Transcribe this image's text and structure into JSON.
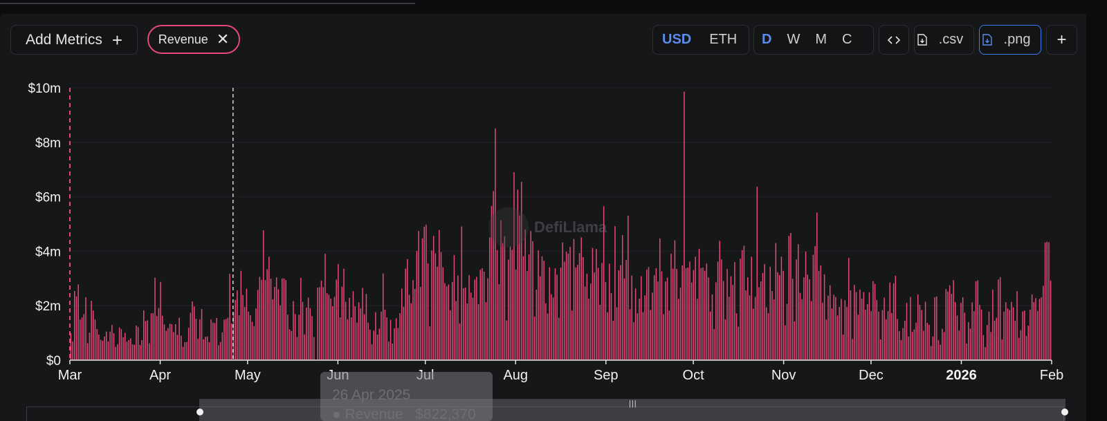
{
  "toolbar": {
    "add_metrics_label": "Add Metrics",
    "add_icon": "plus-icon",
    "metric_chip_label": "Revenue",
    "currency_options": [
      "USD",
      "ETH"
    ],
    "currency_selected": "USD",
    "period_options": [
      "D",
      "W",
      "M",
      "C"
    ],
    "period_selected": "D",
    "embed_icon": "code-icon",
    "csv_label": ".csv",
    "png_label": ".png",
    "download_icon": "file-download-icon",
    "more_label": "+"
  },
  "watermark": {
    "text": "DefiLlama"
  },
  "tooltip": {
    "date": "26 Apr 2025",
    "series": "Revenue",
    "value": "$822,370"
  },
  "colors": {
    "bar": "#e8497a",
    "accent": "#5b8def",
    "background": "#161719"
  },
  "chart_data": {
    "type": "bar",
    "series": [
      {
        "name": "Revenue",
        "values": [
          0.99,
          0.69,
          2.54,
          2.34,
          2.78,
          1.49,
          1.57,
          1.69,
          2.31,
          0.62,
          1.01,
          2.18,
          1.82,
          1.49,
          1.14,
          0.94,
          0.75,
          0.71,
          0.87,
          1.05,
          0.69,
          1.05,
          1.29,
          0.99,
          0.49,
          0.59,
          1.2,
          1.14,
          0.84,
          1.0,
          0.68,
          0.74,
          0.8,
          0.58,
          0.57,
          1.27,
          1.22,
          0.56,
          0.74,
          1.83,
          1.43,
          1.46,
          0.62,
          1.72,
          1.73,
          3.03,
          1.62,
          1.91,
          2.87,
          1.63,
          1.31,
          1.08,
          1.18,
          1.34,
          1.32,
          1.03,
          1.32,
          0.93,
          1.56,
          0.9,
          0.49,
          0.66,
          0.67,
          1.19,
          1.74,
          2.16,
          1.97,
          1.52,
          0.79,
          1.5,
          1.88,
          0.76,
          0.86,
          0.87,
          0.66,
          1.49,
          1.38,
          1.36,
          1.55,
          0.55,
          0.67,
          1.02,
          1.49,
          1.51,
          1.56,
          3.17,
          1.35,
          1.74,
          2.21,
          2.56,
          1.65,
          3.28,
          2.39,
          1.95,
          2.62,
          1.78,
          1.65,
          1.41,
          1.25,
          1.9,
          2.58,
          3.06,
          2.95,
          4.77,
          2.94,
          3.34,
          3.8,
          2.99,
          2.23,
          2.69,
          3.04,
          2.6,
          2.01,
          3.0,
          3.0,
          2.94,
          1.67,
          1.13,
          1.07,
          2.17,
          1.69,
          0.85,
          1.67,
          3.02,
          2.14,
          0.95,
          1.93,
          2.3,
          1.91,
          1.62,
          0.85,
          0.0,
          2.66,
          2.68,
          2.92,
          2.68,
          3.91,
          2.46,
          2.4,
          2.26,
          1.98,
          2.32,
          2.96,
          3.53,
          1.57,
          2.7,
          3.36,
          2.14,
          1.5,
          2.29,
          1.57,
          2.53,
          1.98,
          1.38,
          2.12,
          1.9,
          2.65,
          1.69,
          2.43,
          1.38,
          1.12,
          0.58,
          1.09,
          1.76,
          0.94,
          1.16,
          1.78,
          3.18,
          1.85,
          1.57,
          0.68,
          1.48,
          0.61,
          1.17,
          1.54,
          1.18,
          1.73,
          2.63,
          1.96,
          3.36,
          3.71,
          2.4,
          2.09,
          2.94,
          2.62,
          4.01,
          4.74,
          2.69,
          4.47,
          4.9,
          4.98,
          3.55,
          1.24,
          4.03,
          4.56,
          3.92,
          3.43,
          4.78,
          3.97,
          3.41,
          2.83,
          2.71,
          2.78,
          1.83,
          2.87,
          3.86,
          2.17,
          3.11,
          1.35,
          4.91,
          2.64,
          2.67,
          2.08,
          3.12,
          2.48,
          2.29,
          2.96,
          3.06,
          2.06,
          3.32,
          3.38,
          3.25,
          2.13,
          3.01,
          4.51,
          5.66,
          6.21,
          8.51,
          4.04,
          2.79,
          5.14,
          4.3,
          4.55,
          1.46,
          3.69,
          4.17,
          4.05,
          6.9,
          3.33,
          6.26,
          5.31,
          6.55,
          3.82,
          4.8,
          3.27,
          3.88,
          4.74,
          4.37,
          1.6,
          2.59,
          4.03,
          3.08,
          3.81,
          3.65,
          2.09,
          1.71,
          3.41,
          2.42,
          2.3,
          3.37,
          3.14,
          1.56,
          3.4,
          4.32,
          3.62,
          3.98,
          3.91,
          4.16,
          1.82,
          4.45,
          3.4,
          3.5,
          3.93,
          4.51,
          3.78,
          2.7,
          3.17,
          2.26,
          2.81,
          4.12,
          3.22,
          4.08,
          3.39,
          2.03,
          3.57,
          5.65,
          2.87,
          1.76,
          3.54,
          2.46,
          1.45,
          4.92,
          1.94,
          3.3,
          3.49,
          4.59,
          3.0,
          3.68,
          5.3,
          1.87,
          3.11,
          1.39,
          2.63,
          1.72,
          2.26,
          3.08,
          1.76,
          2.38,
          3.33,
          3.42,
          1.84,
          2.48,
          3.12,
          3.38,
          2.89,
          4.47,
          3.26,
          1.69,
          2.89,
          3.03,
          1.82,
          3.91,
          3.36,
          4.4,
          3.35,
          2.25,
          2.66,
          3.48,
          9.86,
          3.37,
          3.4,
          3.62,
          2.85,
          3.31,
          3.8,
          2.25,
          4.09,
          3.38,
          3.4,
          3.28,
          3.55,
          3.04,
          1.79,
          2.41,
          1.15,
          2.86,
          3.62,
          4.38,
          3.7,
          2.91,
          1.5,
          3.35,
          2.33,
          3.08,
          2.76,
          3.6,
          1.72,
          1.23,
          3.73,
          4.04,
          4.2,
          2.56,
          3.04,
          2.38,
          3.8,
          1.89,
          2.32,
          6.37,
          2.68,
          2.89,
          3.2,
          3.53,
          1.94,
          1.72,
          3.43,
          2.54,
          2.23,
          4.3,
          3.23,
          3.12,
          3.8,
          3.28,
          1.28,
          2.07,
          4.56,
          4.67,
          2.99,
          1.42,
          3.7,
          4.26,
          2.47,
          2.24,
          3.04,
          3.99,
          3.14,
          2.97,
          2.17,
          3.87,
          4.19,
          5.42,
          3.28,
          3.48,
          2.11,
          3.15,
          1.49,
          2.37,
          2.75,
          1.9,
          2.4,
          2.32,
          1.64,
          1.95,
          2.25,
          0.94,
          2.2,
          1.96,
          3.76,
          2.56,
          0.78,
          2.76,
          2.5,
          1.67,
          2.59,
          2.26,
          2.5,
          1.85,
          2.06,
          2.49,
          1.8,
          2.9,
          2.8,
          2.21,
          1.78,
          0.76,
          1.84,
          2.3,
          1.5,
          1.8,
          2.85,
          1.73,
          2.82,
          3.1,
          1.51,
          1.07,
          0.74,
          1.18,
          1.45,
          2.1,
          0.87,
          2.32,
          1.04,
          1.13,
          1.38,
          2.41,
          2.03,
          1.84,
          1.08,
          2.15,
          1.37,
          1.3,
          0.52,
          0.87,
          2.31,
          2.34,
          0.73,
          0.57,
          1.15,
          1.03,
          2.61,
          2.52,
          2.75,
          2.43,
          2.94,
          2.13,
          1.64,
          1.09,
          2.11,
          2.31,
          1.74,
          0.61,
          1.4,
          1.16,
          2.12,
          1.8,
          2.9,
          2.93,
          2.03,
          1.86,
          0.92,
          0.48,
          1.29,
          1.78,
          1.03,
          2.59,
          1.45,
          1.56,
          2.96,
          3.05,
          0.76,
          1.78,
          2.13,
          1.9,
          1.84,
          2.14,
          1.94,
          1.45,
          2.53,
          0.82,
          1.1,
          1.79,
          1.82,
          0.89,
          1.27,
          1.85,
          2.41,
          2.13,
          2.28,
          1.81,
          2.25,
          2.31,
          2.73,
          4.32,
          4.35,
          4.33,
          2.92
        ]
      }
    ],
    "x_range": [
      "2025-03-01",
      "2026-02-01"
    ],
    "x_ticks": [
      {
        "label": "Mar",
        "date": "2025-03-01",
        "bold": false
      },
      {
        "label": "Apr",
        "date": "2025-04-01",
        "bold": false
      },
      {
        "label": "May",
        "date": "2025-05-01",
        "bold": false
      },
      {
        "label": "Jun",
        "date": "2025-06-01",
        "bold": false
      },
      {
        "label": "Jul",
        "date": "2025-07-01",
        "bold": false
      },
      {
        "label": "Aug",
        "date": "2025-08-01",
        "bold": false
      },
      {
        "label": "Sep",
        "date": "2025-09-01",
        "bold": false
      },
      {
        "label": "Oct",
        "date": "2025-10-01",
        "bold": false
      },
      {
        "label": "Nov",
        "date": "2025-11-01",
        "bold": false
      },
      {
        "label": "Dec",
        "date": "2025-12-01",
        "bold": false
      },
      {
        "label": "2026",
        "date": "2026-01-01",
        "bold": true
      },
      {
        "label": "Feb",
        "date": "2026-02-01",
        "bold": false
      }
    ],
    "y_unit": "millions USD",
    "ylim": [
      0,
      10
    ],
    "y_ticks": [
      {
        "label": "$0",
        "value": 0
      },
      {
        "label": "$2m",
        "value": 2
      },
      {
        "label": "$4m",
        "value": 4
      },
      {
        "label": "$6m",
        "value": 6
      },
      {
        "label": "$8m",
        "value": 8
      },
      {
        "label": "$10m",
        "value": 10
      }
    ],
    "crosshair_date": "2025-04-26",
    "grid": true
  }
}
